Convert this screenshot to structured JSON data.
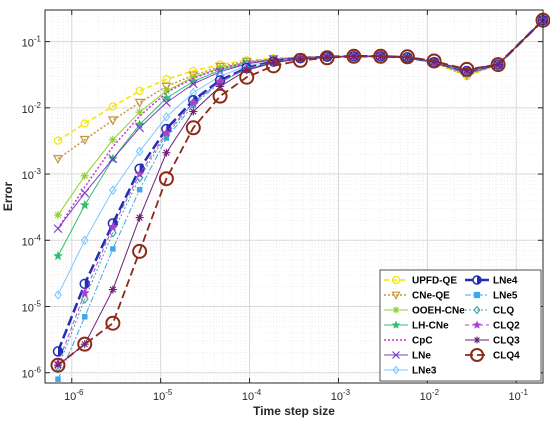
{
  "chart_data": {
    "type": "line",
    "xlabel": "Time step size",
    "ylabel": "Error",
    "xscale": "log",
    "yscale": "log",
    "xlim": [
      5e-07,
      0.2
    ],
    "ylim": [
      7e-07,
      0.3
    ],
    "grid": true,
    "legend_position": "bottom-right",
    "x": [
      7e-07,
      1.4e-06,
      2.9e-06,
      5.8e-06,
      1.16e-05,
      2.33e-05,
      4.66e-05,
      9.3e-05,
      0.000186,
      0.000373,
      0.000745,
      0.00149,
      0.00298,
      0.00596,
      0.0119,
      0.0278,
      0.0625,
      0.2
    ],
    "x_ticks": [
      {
        "value": 1e-06,
        "label": "10",
        "exp": "-6"
      },
      {
        "value": 1e-05,
        "label": "10",
        "exp": "-5"
      },
      {
        "value": 0.0001,
        "label": "10",
        "exp": "-4"
      },
      {
        "value": 0.001,
        "label": "10",
        "exp": "-3"
      },
      {
        "value": 0.01,
        "label": "10",
        "exp": "-2"
      },
      {
        "value": 0.1,
        "label": "10",
        "exp": "-1"
      }
    ],
    "y_ticks": [
      {
        "value": 1e-06,
        "label": "10",
        "exp": "-6"
      },
      {
        "value": 1e-05,
        "label": "10",
        "exp": "-5"
      },
      {
        "value": 0.0001,
        "label": "10",
        "exp": "-4"
      },
      {
        "value": 0.001,
        "label": "10",
        "exp": "-3"
      },
      {
        "value": 0.01,
        "label": "10",
        "exp": "-2"
      },
      {
        "value": 0.1,
        "label": "10",
        "exp": "-1"
      }
    ],
    "series": [
      {
        "name": "UPFD-QE",
        "color": "#f2e600",
        "dash": "5,3",
        "marker": "circle",
        "width": 1.5,
        "values": [
          0.0032,
          0.0058,
          0.0105,
          0.018,
          0.027,
          0.036,
          0.045,
          0.052,
          0.056,
          0.058,
          0.059,
          0.06,
          0.06,
          0.057,
          0.048,
          0.03,
          0.045,
          0.21
        ]
      },
      {
        "name": "CNe-QE",
        "color": "#c8963c",
        "dash": "2,2",
        "marker": "triangle-down",
        "width": 1.5,
        "values": [
          0.0017,
          0.0033,
          0.0065,
          0.012,
          0.021,
          0.031,
          0.042,
          0.05,
          0.055,
          0.058,
          0.059,
          0.06,
          0.06,
          0.057,
          0.048,
          0.031,
          0.045,
          0.21
        ]
      },
      {
        "name": "OOEH-CNe",
        "color": "#8cd22c",
        "dash": "",
        "marker": "asterisk",
        "width": 1.0,
        "values": [
          0.00024,
          0.00094,
          0.0033,
          0.0086,
          0.018,
          0.029,
          0.04,
          0.049,
          0.054,
          0.057,
          0.059,
          0.06,
          0.06,
          0.057,
          0.049,
          0.032,
          0.045,
          0.21
        ]
      },
      {
        "name": "LH-CNe",
        "color": "#2fbf71",
        "dash": "",
        "marker": "star",
        "width": 1.0,
        "values": [
          5.8e-05,
          0.00034,
          0.0017,
          0.0056,
          0.014,
          0.025,
          0.037,
          0.047,
          0.053,
          0.057,
          0.059,
          0.06,
          0.06,
          0.057,
          0.049,
          0.033,
          0.045,
          0.21
        ]
      },
      {
        "name": "CpC",
        "color": "#cc33cc",
        "dash": "2,2",
        "marker": "none",
        "width": 1.5,
        "values": [
          0.00015,
          0.00064,
          0.0026,
          0.0075,
          0.017,
          0.028,
          0.039,
          0.048,
          0.054,
          0.057,
          0.059,
          0.06,
          0.06,
          0.057,
          0.049,
          0.033,
          0.045,
          0.21
        ]
      },
      {
        "name": "LNe",
        "color": "#7b3fc9",
        "dash": "",
        "marker": "x",
        "width": 1.0,
        "values": [
          0.00015,
          0.00052,
          0.0017,
          0.005,
          0.012,
          0.023,
          0.035,
          0.046,
          0.053,
          0.057,
          0.059,
          0.06,
          0.06,
          0.057,
          0.049,
          0.034,
          0.045,
          0.21
        ]
      },
      {
        "name": "LNe3",
        "color": "#80c8ff",
        "dash": "",
        "marker": "diamond",
        "width": 1.0,
        "values": [
          1.5e-05,
          0.0001,
          0.00057,
          0.0022,
          0.0073,
          0.017,
          0.03,
          0.043,
          0.051,
          0.056,
          0.059,
          0.06,
          0.06,
          0.058,
          0.049,
          0.035,
          0.045,
          0.21
        ]
      },
      {
        "name": "LNe4",
        "color": "#1f2fb4",
        "dash": "10,4",
        "marker": "circle-filled",
        "width": 2.5,
        "values": [
          2.1e-06,
          2.2e-05,
          0.00018,
          0.0012,
          0.0048,
          0.013,
          0.026,
          0.04,
          0.05,
          0.056,
          0.059,
          0.06,
          0.06,
          0.058,
          0.049,
          0.036,
          0.045,
          0.21
        ]
      },
      {
        "name": "LNe5",
        "color": "#3fa8e8",
        "dash": "6,2,2,2",
        "marker": "square",
        "width": 1.0,
        "values": [
          8e-07,
          7e-06,
          7.4e-05,
          0.00058,
          0.0035,
          0.011,
          0.024,
          0.039,
          0.049,
          0.056,
          0.059,
          0.06,
          0.06,
          0.058,
          0.049,
          0.036,
          0.045,
          0.21
        ]
      },
      {
        "name": "CLQ",
        "color": "#40a0a0",
        "dash": "2,2",
        "marker": "diamond",
        "width": 1.0,
        "values": [
          1.2e-06,
          1.3e-05,
          0.00013,
          0.00088,
          0.0039,
          0.012,
          0.025,
          0.039,
          0.049,
          0.056,
          0.059,
          0.06,
          0.06,
          0.058,
          0.049,
          0.036,
          0.045,
          0.21
        ]
      },
      {
        "name": "CLQ2",
        "color": "#b03cd2",
        "dash": "4,3",
        "marker": "star",
        "width": 1.0,
        "values": [
          1.4e-06,
          1.6e-05,
          0.00016,
          0.001,
          0.0042,
          0.012,
          0.025,
          0.039,
          0.049,
          0.056,
          0.059,
          0.06,
          0.06,
          0.058,
          0.049,
          0.036,
          0.045,
          0.21
        ]
      },
      {
        "name": "CLQ3",
        "color": "#6c1f7a",
        "dash": "",
        "marker": "asterisk",
        "width": 1.0,
        "values": [
          1.3e-06,
          2.7e-06,
          1.8e-05,
          0.00022,
          0.0021,
          0.0088,
          0.021,
          0.037,
          0.048,
          0.055,
          0.058,
          0.06,
          0.06,
          0.058,
          0.05,
          0.037,
          0.045,
          0.21
        ]
      },
      {
        "name": "CLQ4",
        "color": "#8b2a1a",
        "dash": "8,4",
        "marker": "circle-open",
        "width": 1.8,
        "values": [
          1.3e-06,
          2.7e-06,
          5.6e-06,
          6.8e-05,
          0.00085,
          0.005,
          0.015,
          0.029,
          0.043,
          0.052,
          0.057,
          0.06,
          0.06,
          0.059,
          0.051,
          0.038,
          0.045,
          0.21
        ]
      }
    ]
  }
}
